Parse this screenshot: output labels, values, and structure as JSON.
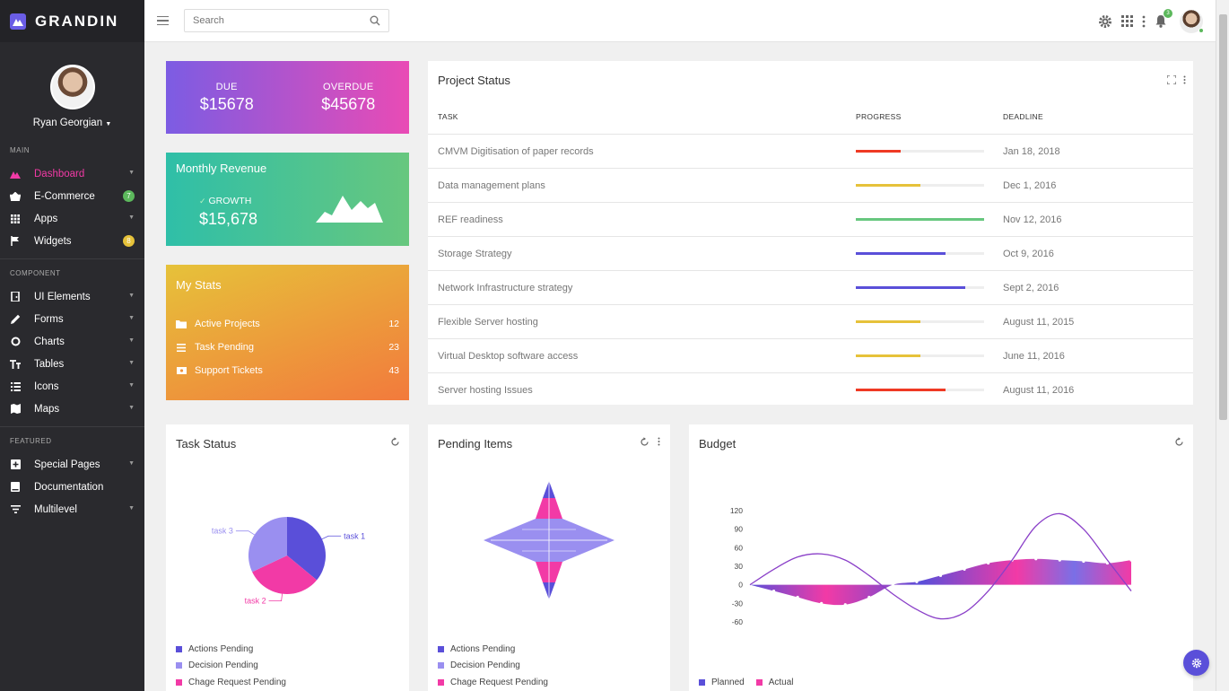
{
  "brand": {
    "name": "GRANDIN",
    "accent": "#6a5de6"
  },
  "profile": {
    "name": "Ryan Georgian"
  },
  "sidebar": {
    "sections": [
      {
        "label": "MAIN",
        "items": [
          {
            "label": "Dashboard",
            "icon": "triangle-logo-icon",
            "active": true,
            "chevron": true
          },
          {
            "label": "E-Commerce",
            "icon": "basket-icon",
            "badge": "7",
            "badge_color": "#5cb85c"
          },
          {
            "label": "Apps",
            "icon": "grid-icon",
            "chevron": true
          },
          {
            "label": "Widgets",
            "icon": "flag-icon",
            "badge": "8",
            "badge_color": "#e6c23a"
          }
        ]
      },
      {
        "label": "COMPONENT",
        "items": [
          {
            "label": "UI Elements",
            "icon": "door-icon",
            "chevron": true
          },
          {
            "label": "Forms",
            "icon": "pencil-icon",
            "chevron": true
          },
          {
            "label": "Charts",
            "icon": "ring-chart-icon",
            "chevron": true
          },
          {
            "label": "Tables",
            "icon": "table-icon",
            "chevron": true
          },
          {
            "label": "Icons",
            "icon": "list-icon",
            "chevron": true
          },
          {
            "label": "Maps",
            "icon": "map-icon",
            "chevron": true
          }
        ]
      },
      {
        "label": "FEATURED",
        "items": [
          {
            "label": "Special Pages",
            "icon": "plus-square-icon",
            "chevron": true
          },
          {
            "label": "Documentation",
            "icon": "book-icon"
          },
          {
            "label": "Multilevel",
            "icon": "filter-icon",
            "chevron": true
          }
        ]
      }
    ]
  },
  "topbar": {
    "search_placeholder": "Search",
    "notification_count": "3"
  },
  "due_card": {
    "due_label": "DUE",
    "due_value": "$15678",
    "overdue_label": "OVERDUE",
    "overdue_value": "$45678"
  },
  "revenue_card": {
    "title": "Monthly Revenue",
    "growth_label": "GROWTH",
    "growth_value": "$15,678"
  },
  "stats_card": {
    "title": "My Stats",
    "rows": [
      {
        "label": "Active Projects",
        "value": "12",
        "icon": "folder-icon"
      },
      {
        "label": "Task Pending",
        "value": "23",
        "icon": "list-icon"
      },
      {
        "label": "Support Tickets",
        "value": "43",
        "icon": "ticket-icon"
      }
    ]
  },
  "project_status": {
    "title": "Project Status",
    "columns": [
      "TASK",
      "PROGRESS",
      "DEADLINE"
    ],
    "rows": [
      {
        "task": "CMVM Digitisation of paper records",
        "progress": 0.35,
        "color": "#ef3a24",
        "deadline": "Jan 18, 2018"
      },
      {
        "task": "Data management plans",
        "progress": 0.5,
        "color": "#e6c23a",
        "deadline": "Dec 1, 2016"
      },
      {
        "task": "REF readiness",
        "progress": 1.0,
        "color": "#67c77e",
        "deadline": "Nov 12, 2016"
      },
      {
        "task": "Storage Strategy",
        "progress": 0.7,
        "color": "#5a4fd9",
        "deadline": "Oct 9, 2016"
      },
      {
        "task": "Network Infrastructure strategy",
        "progress": 0.85,
        "color": "#5a4fd9",
        "deadline": "Sept 2, 2016"
      },
      {
        "task": "Flexible Server hosting",
        "progress": 0.5,
        "color": "#e6c23a",
        "deadline": "August 11, 2015"
      },
      {
        "task": "Virtual Desktop software access",
        "progress": 0.5,
        "color": "#e6c23a",
        "deadline": "June 11, 2016"
      },
      {
        "task": "Server hosting Issues",
        "progress": 0.7,
        "color": "#ef3a24",
        "deadline": "August 11, 2016"
      }
    ]
  },
  "task_status": {
    "title": "Task Status",
    "legend": [
      "Actions Pending",
      "Decision Pending",
      "Chage Request Pending"
    ],
    "legend_colors": [
      "#5a4fd9",
      "#9a8ff0",
      "#f23aa6"
    ]
  },
  "pending_items": {
    "title": "Pending Items",
    "legend": [
      "Actions Pending",
      "Decision Pending",
      "Chage Request Pending"
    ],
    "legend_colors": [
      "#5a4fd9",
      "#9a8ff0",
      "#f23aa6"
    ]
  },
  "budget": {
    "title": "Budget",
    "legend": [
      "Planned",
      "Actual"
    ],
    "legend_colors": [
      "#5a4fd9",
      "#f23aa6"
    ]
  },
  "chart_data": [
    {
      "type": "pie",
      "categories": [
        "task 1",
        "task 2",
        "task 3"
      ],
      "values": [
        36,
        32,
        32
      ],
      "colors": [
        "#5a4fd9",
        "#f23aa6",
        "#9a8ff0"
      ]
    },
    {
      "type": "line",
      "y_ticks": [
        "120",
        "90",
        "60",
        "30",
        "0",
        "-30",
        "-60"
      ],
      "ylim": [
        -60,
        120
      ],
      "series": [
        {
          "name": "Planned",
          "values": [
            0,
            25,
            45,
            50,
            40,
            15,
            -15,
            -40,
            -55,
            -45,
            -10,
            40,
            95,
            115,
            90,
            40,
            -10
          ]
        },
        {
          "name": "Actual",
          "values": [
            0,
            -10,
            -20,
            -30,
            -32,
            -20,
            0,
            5,
            15,
            25,
            35,
            40,
            42,
            40,
            38,
            35,
            40
          ]
        }
      ]
    }
  ]
}
